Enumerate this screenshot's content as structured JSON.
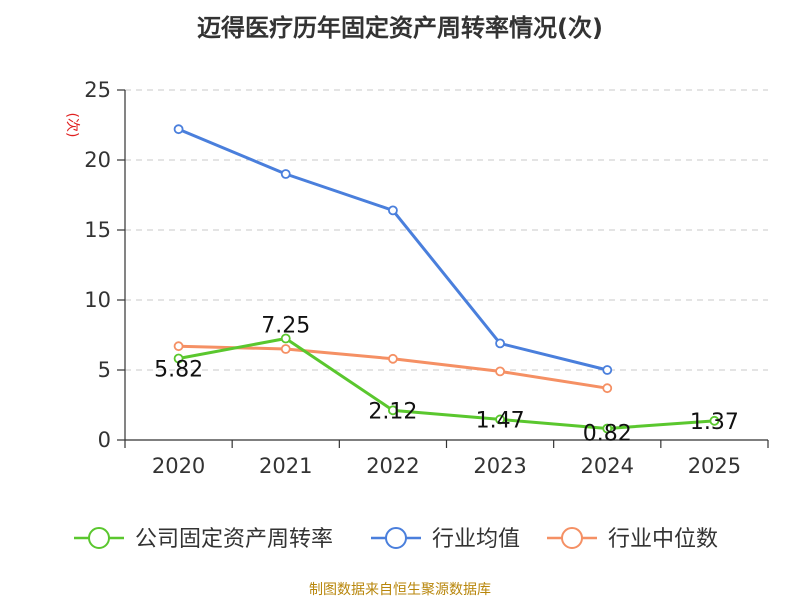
{
  "chart_data": {
    "type": "line",
    "title": "迈得医疗历年固定资产周转率情况(次)",
    "y_unit": "(次)",
    "categories": [
      "2020",
      "2021",
      "2022",
      "2023",
      "2024",
      "2025"
    ],
    "ylim": [
      0,
      25
    ],
    "yticks": [
      0,
      5,
      10,
      15,
      20,
      25
    ],
    "grid": true,
    "legend_position": "bottom",
    "series": [
      {
        "name": "公司固定资产周转率",
        "color": "#5ac72e",
        "values": [
          5.82,
          7.25,
          2.12,
          1.47,
          0.82,
          1.37
        ],
        "labels": [
          "5.82",
          "7.25",
          "2.12",
          "1.47",
          "0.82",
          "1.37"
        ]
      },
      {
        "name": "行业均值",
        "color": "#4a7fdc",
        "values": [
          22.2,
          19.0,
          16.4,
          6.9,
          5.0,
          null
        ]
      },
      {
        "name": "行业中位数",
        "color": "#f59064",
        "values": [
          6.7,
          6.5,
          5.8,
          4.9,
          3.7,
          null
        ]
      }
    ],
    "source": "制图数据来自恒生聚源数据库"
  }
}
